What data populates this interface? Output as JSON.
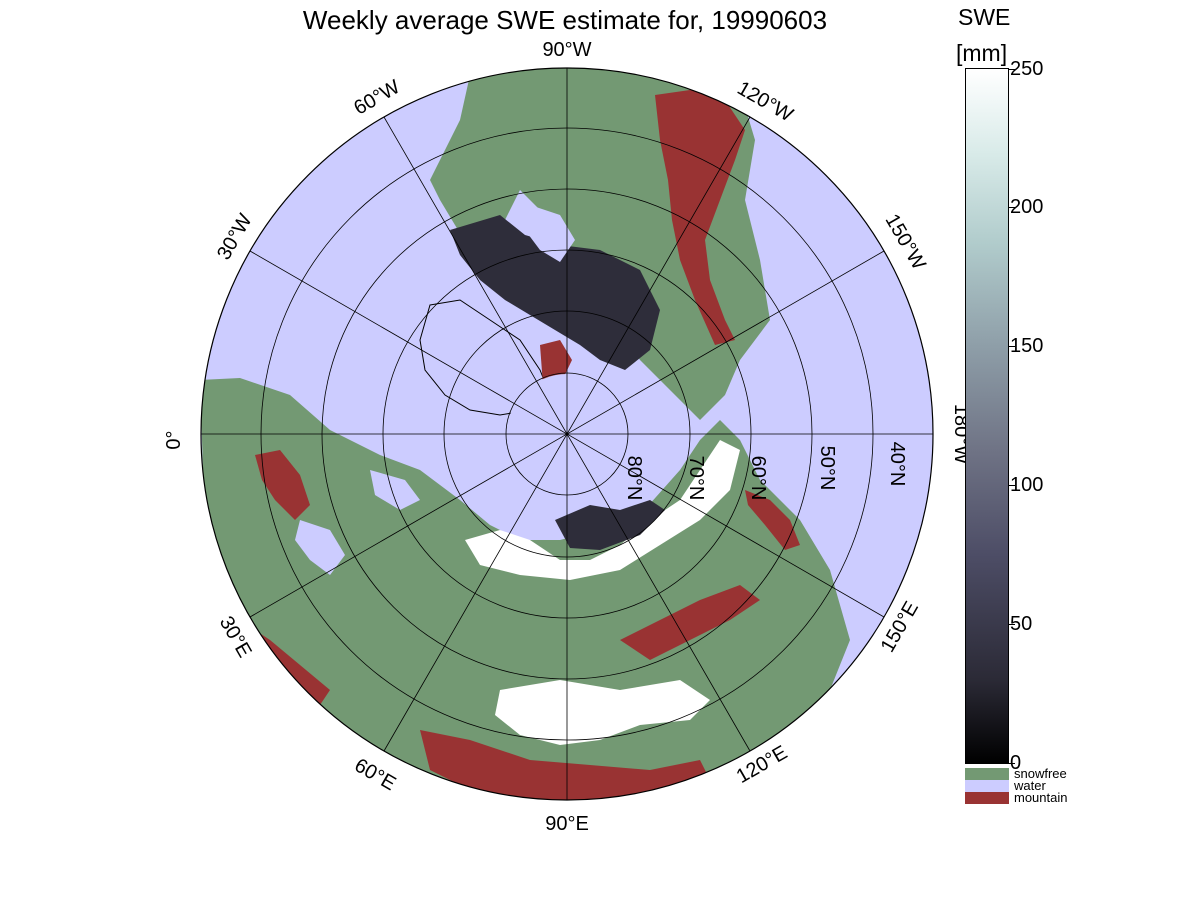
{
  "title": "Weekly average SWE estimate for, 19990603",
  "map": {
    "longitude_labels": {
      "lon_90W": "90°W",
      "lon_120W": "120°W",
      "lon_150W": "150°W",
      "lon_180W": "180°W",
      "lon_150E": "150°E",
      "lon_120E": "120°E",
      "lon_90E": "90°E",
      "lon_60E": "60°E",
      "lon_30E": "30°E",
      "lon_0": "0°",
      "lon_30W": "30°W",
      "lon_60W": "60°W"
    },
    "latitude_labels": {
      "lat_80N": "80°N",
      "lat_70N": "70°N",
      "lat_60N": "60°N",
      "lat_50N": "50°N",
      "lat_40N": "40°N"
    },
    "colors": {
      "water": "#ccccff",
      "snowfree": "#739973",
      "mountain": "#993333",
      "snow_deep": "#2e2d3a",
      "snow_fresh": "#ffffff"
    }
  },
  "colorbar": {
    "title": "SWE",
    "unit": "[mm]",
    "min": 0,
    "max": 250,
    "tick_values": [
      0,
      50,
      100,
      150,
      200,
      250
    ],
    "tick_labels": {
      "t0": "0",
      "t50": "50",
      "t100": "100",
      "t150": "150",
      "t200": "200",
      "t250": "250"
    },
    "categories": {
      "snowfree": {
        "label": "snowfree",
        "color": "#739973"
      },
      "water": {
        "label": "water",
        "color": "#ccccff"
      },
      "mountain": {
        "label": "mountain",
        "color": "#993333"
      }
    }
  }
}
